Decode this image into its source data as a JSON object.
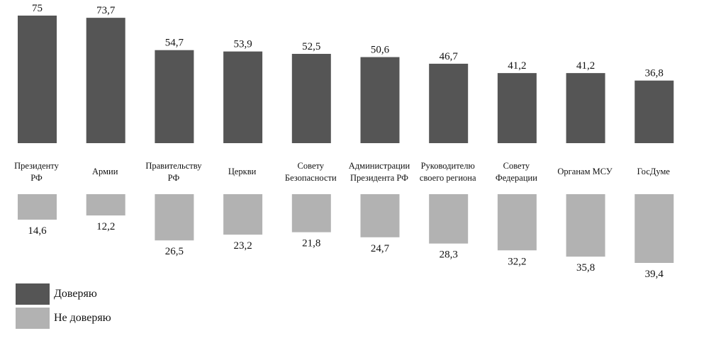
{
  "chart_data": {
    "type": "bar",
    "categories": [
      [
        "Президенту",
        "РФ"
      ],
      [
        "Армии"
      ],
      [
        "Правительству",
        "РФ"
      ],
      [
        "Церкви"
      ],
      [
        "Совету",
        "Безопасности"
      ],
      [
        "Администрации",
        "Президента РФ"
      ],
      [
        "Руководителю",
        "своего региона"
      ],
      [
        "Совету",
        "Федерации"
      ],
      [
        "Органам МСУ"
      ],
      [
        "ГосДуме"
      ]
    ],
    "series": [
      {
        "name": "Доверяю",
        "values": [
          75,
          73.7,
          54.7,
          53.9,
          52.5,
          50.6,
          46.7,
          41.2,
          41.2,
          36.8
        ],
        "labels": [
          "75",
          "73,7",
          "54,7",
          "53,9",
          "52,5",
          "50,6",
          "46,7",
          "41,2",
          "41,2",
          "36,8"
        ],
        "color": "#555555"
      },
      {
        "name": "Не доверяю",
        "values": [
          14.6,
          12.2,
          26.5,
          23.2,
          21.8,
          24.7,
          28.3,
          32.2,
          35.8,
          39.4
        ],
        "labels": [
          "14,6",
          "12,2",
          "26,5",
          "23,2",
          "21,8",
          "24,7",
          "28,3",
          "32,2",
          "35,8",
          "39,4"
        ],
        "color": "#b2b2b2"
      }
    ],
    "legend": "bottom-left",
    "grid": false,
    "title": "",
    "xlabel": "",
    "ylabel": ""
  }
}
